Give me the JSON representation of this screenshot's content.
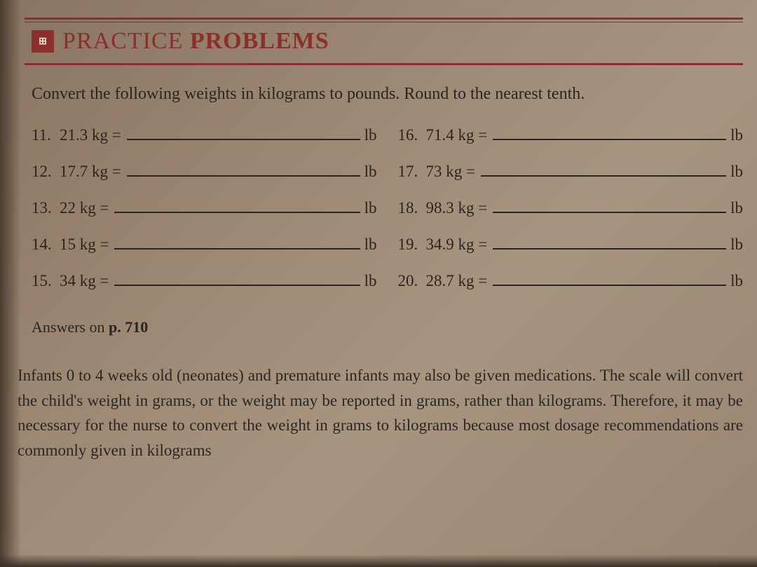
{
  "header": {
    "icon_glyph": "⊞",
    "title_light": "PRACTICE ",
    "title_bold": "PROBLEMS"
  },
  "instruction": "Convert the following weights in kilograms to pounds. Round to the nearest tenth.",
  "problems_left": [
    {
      "num": "11.",
      "value": "21.3 kg =",
      "unit": "lb"
    },
    {
      "num": "12.",
      "value": "17.7 kg =",
      "unit": "lb"
    },
    {
      "num": "13.",
      "value": "22 kg =",
      "unit": "lb"
    },
    {
      "num": "14.",
      "value": "15 kg =",
      "unit": "lb"
    },
    {
      "num": "15.",
      "value": "34 kg =",
      "unit": "lb"
    }
  ],
  "problems_right": [
    {
      "num": "16.",
      "value": "71.4 kg =",
      "unit": "lb"
    },
    {
      "num": "17.",
      "value": "73 kg =",
      "unit": "lb"
    },
    {
      "num": "18.",
      "value": "98.3 kg =",
      "unit": "lb"
    },
    {
      "num": "19.",
      "value": "34.9 kg =",
      "unit": "lb"
    },
    {
      "num": "20.",
      "value": "28.7 kg =",
      "unit": "lb"
    }
  ],
  "answers": {
    "text_normal": "Answers on ",
    "text_bold": "p. 710"
  },
  "body_text": "Infants 0 to 4 weeks old (neonates) and premature infants may also be given medications. The scale will convert the child's weight in grams, or the weight may be reported in grams, rather than kilograms. Therefore, it may be necessary for the nurse to convert the weight in grams to kilograms because most dosage recommendations are commonly given in kilograms",
  "colors": {
    "accent": "#8b2e2e",
    "text": "#2a2520",
    "paper_light": "#a89580",
    "paper_dark": "#8a7560"
  }
}
